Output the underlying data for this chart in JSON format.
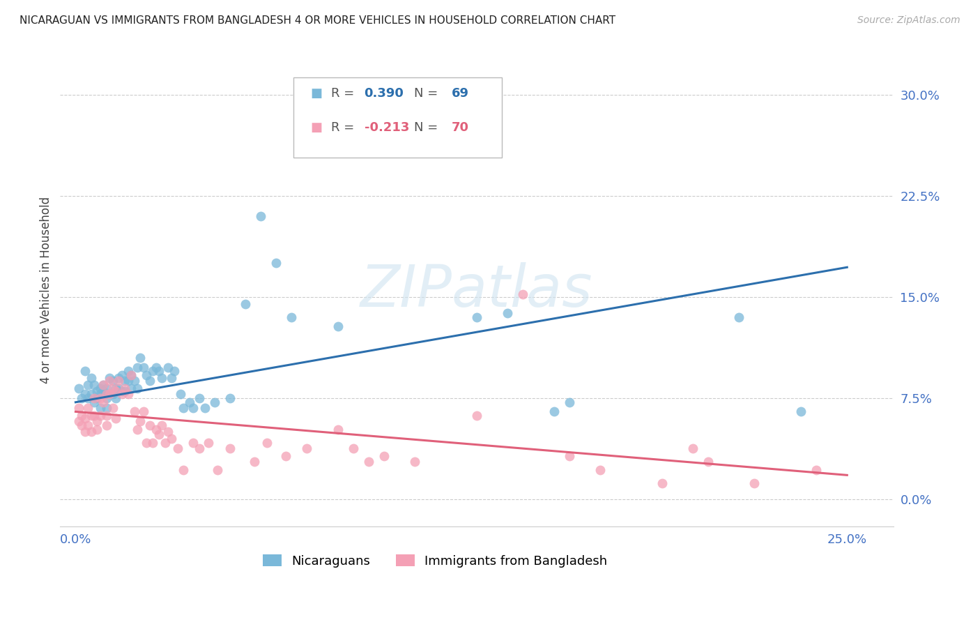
{
  "title": "NICARAGUAN VS IMMIGRANTS FROM BANGLADESH 4 OR MORE VEHICLES IN HOUSEHOLD CORRELATION CHART",
  "source": "Source: ZipAtlas.com",
  "ylabel": "4 or more Vehicles in Household",
  "ytick_labels": [
    "0.0%",
    "7.5%",
    "15.0%",
    "22.5%",
    "30.0%"
  ],
  "ytick_values": [
    0.0,
    0.075,
    0.15,
    0.225,
    0.3
  ],
  "xtick_values": [
    0.0,
    0.25
  ],
  "xtick_labels": [
    "0.0%",
    "25.0%"
  ],
  "xmin": -0.005,
  "xmax": 0.265,
  "ymin": -0.02,
  "ymax": 0.33,
  "blue_R": 0.39,
  "blue_N": 69,
  "pink_R": -0.213,
  "pink_N": 70,
  "blue_color": "#7ab8d9",
  "pink_color": "#f4a0b5",
  "blue_line_color": "#2c6fad",
  "pink_line_color": "#e0607a",
  "legend_label_blue": "Nicaraguans",
  "legend_label_pink": "Immigrants from Bangladesh",
  "blue_scatter_x": [
    0.001,
    0.002,
    0.003,
    0.003,
    0.004,
    0.004,
    0.005,
    0.005,
    0.006,
    0.006,
    0.007,
    0.007,
    0.008,
    0.008,
    0.008,
    0.009,
    0.009,
    0.01,
    0.01,
    0.01,
    0.011,
    0.011,
    0.012,
    0.012,
    0.013,
    0.013,
    0.014,
    0.014,
    0.015,
    0.015,
    0.016,
    0.016,
    0.017,
    0.017,
    0.018,
    0.018,
    0.019,
    0.02,
    0.02,
    0.021,
    0.022,
    0.023,
    0.024,
    0.025,
    0.026,
    0.027,
    0.028,
    0.03,
    0.031,
    0.032,
    0.034,
    0.035,
    0.037,
    0.038,
    0.04,
    0.042,
    0.045,
    0.05,
    0.055,
    0.06,
    0.065,
    0.07,
    0.085,
    0.13,
    0.14,
    0.155,
    0.16,
    0.215,
    0.235
  ],
  "blue_scatter_y": [
    0.082,
    0.075,
    0.095,
    0.078,
    0.085,
    0.075,
    0.078,
    0.09,
    0.085,
    0.072,
    0.08,
    0.075,
    0.082,
    0.078,
    0.068,
    0.085,
    0.08,
    0.082,
    0.075,
    0.068,
    0.09,
    0.078,
    0.088,
    0.078,
    0.082,
    0.075,
    0.09,
    0.082,
    0.092,
    0.08,
    0.088,
    0.08,
    0.095,
    0.088,
    0.092,
    0.082,
    0.088,
    0.098,
    0.082,
    0.105,
    0.098,
    0.092,
    0.088,
    0.095,
    0.098,
    0.095,
    0.09,
    0.098,
    0.09,
    0.095,
    0.078,
    0.068,
    0.072,
    0.068,
    0.075,
    0.068,
    0.072,
    0.075,
    0.145,
    0.21,
    0.175,
    0.135,
    0.128,
    0.135,
    0.138,
    0.065,
    0.072,
    0.135,
    0.065
  ],
  "pink_scatter_x": [
    0.001,
    0.001,
    0.002,
    0.002,
    0.003,
    0.003,
    0.004,
    0.004,
    0.005,
    0.005,
    0.006,
    0.006,
    0.007,
    0.007,
    0.008,
    0.008,
    0.009,
    0.009,
    0.01,
    0.01,
    0.01,
    0.011,
    0.011,
    0.012,
    0.012,
    0.013,
    0.013,
    0.014,
    0.015,
    0.016,
    0.017,
    0.018,
    0.019,
    0.02,
    0.021,
    0.022,
    0.023,
    0.024,
    0.025,
    0.026,
    0.027,
    0.028,
    0.029,
    0.03,
    0.031,
    0.033,
    0.035,
    0.038,
    0.04,
    0.043,
    0.046,
    0.05,
    0.058,
    0.062,
    0.068,
    0.075,
    0.085,
    0.09,
    0.095,
    0.1,
    0.11,
    0.13,
    0.145,
    0.16,
    0.17,
    0.19,
    0.2,
    0.205,
    0.22,
    0.24
  ],
  "pink_scatter_y": [
    0.068,
    0.058,
    0.062,
    0.055,
    0.06,
    0.05,
    0.068,
    0.055,
    0.062,
    0.05,
    0.075,
    0.062,
    0.058,
    0.052,
    0.075,
    0.062,
    0.085,
    0.072,
    0.078,
    0.062,
    0.055,
    0.088,
    0.078,
    0.082,
    0.068,
    0.08,
    0.06,
    0.088,
    0.078,
    0.082,
    0.078,
    0.092,
    0.065,
    0.052,
    0.058,
    0.065,
    0.042,
    0.055,
    0.042,
    0.052,
    0.048,
    0.055,
    0.042,
    0.05,
    0.045,
    0.038,
    0.022,
    0.042,
    0.038,
    0.042,
    0.022,
    0.038,
    0.028,
    0.042,
    0.032,
    0.038,
    0.052,
    0.038,
    0.028,
    0.032,
    0.028,
    0.062,
    0.152,
    0.032,
    0.022,
    0.012,
    0.038,
    0.028,
    0.012,
    0.022
  ]
}
